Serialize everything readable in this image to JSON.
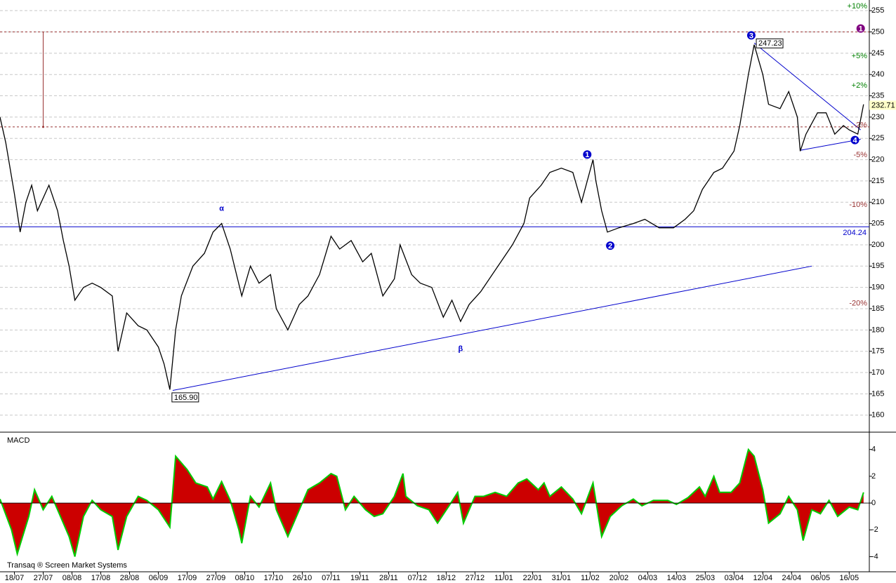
{
  "chart_data": [
    {
      "type": "line",
      "color": "#000000",
      "x": [
        0,
        2,
        5,
        7,
        9,
        11,
        13,
        17,
        20,
        22,
        24,
        26,
        29,
        32,
        35,
        39,
        41,
        44,
        48,
        51,
        55,
        57,
        59,
        61,
        63,
        67,
        71,
        74,
        77,
        80,
        84,
        87,
        90,
        94,
        96,
        100,
        104,
        107,
        111,
        115,
        118,
        122,
        126,
        129,
        133,
        137,
        139,
        143,
        146,
        150,
        154,
        157,
        160,
        163,
        167,
        171,
        174,
        178,
        182,
        184,
        188,
        191,
        195,
        199,
        202,
        206,
        207,
        209,
        211,
        215,
        220,
        224,
        229,
        234,
        238,
        241,
        244,
        248,
        251,
        255,
        257,
        260,
        262,
        265,
        267,
        271,
        274,
        277,
        278,
        280,
        284,
        287,
        290,
        293,
        295,
        298,
        300
      ],
      "values": [
        230,
        224,
        212,
        203,
        210,
        214,
        208,
        214,
        208,
        201,
        195,
        187,
        190,
        191,
        190,
        188,
        175,
        184,
        181,
        180,
        176,
        172,
        166,
        180,
        188,
        195,
        198,
        203,
        205,
        199,
        188,
        195,
        191,
        193,
        185,
        180,
        186,
        188,
        193,
        202,
        199,
        201,
        196,
        198,
        188,
        192,
        200,
        193,
        191,
        190,
        183,
        187,
        182,
        186,
        189,
        193,
        196,
        200,
        205,
        211,
        214,
        217,
        218,
        217,
        210,
        220,
        215,
        208,
        203,
        204,
        205,
        206,
        204,
        204,
        206,
        208,
        213,
        217,
        218,
        222,
        228,
        240,
        247,
        240,
        233,
        232,
        236,
        230,
        222,
        226,
        231,
        231,
        226,
        228,
        227,
        226,
        233
      ],
      "xlim": [
        0,
        302
      ],
      "xticks": [
        {
          "value": 5,
          "label": "18/07"
        },
        {
          "value": 15,
          "label": "27/07"
        },
        {
          "value": 25,
          "label": "08/08"
        },
        {
          "value": 35,
          "label": "17/08"
        },
        {
          "value": 45,
          "label": "28/08"
        },
        {
          "value": 55,
          "label": "06/09"
        },
        {
          "value": 65,
          "label": "17/09"
        },
        {
          "value": 75,
          "label": "27/09"
        },
        {
          "value": 85,
          "label": "08/10"
        },
        {
          "value": 95,
          "label": "17/10"
        },
        {
          "value": 105,
          "label": "26/10"
        },
        {
          "value": 115,
          "label": "07/11"
        },
        {
          "value": 125,
          "label": "19/11"
        },
        {
          "value": 135,
          "label": "28/11"
        },
        {
          "value": 145,
          "label": "07/12"
        },
        {
          "value": 155,
          "label": "18/12"
        },
        {
          "value": 165,
          "label": "27/12"
        },
        {
          "value": 175,
          "label": "11/01"
        },
        {
          "value": 185,
          "label": "22/01"
        },
        {
          "value": 195,
          "label": "31/01"
        },
        {
          "value": 205,
          "label": "11/02"
        },
        {
          "value": 215,
          "label": "20/02"
        },
        {
          "value": 225,
          "label": "04/03"
        },
        {
          "value": 235,
          "label": "14/03"
        },
        {
          "value": 245,
          "label": "25/03"
        },
        {
          "value": 255,
          "label": "03/04"
        },
        {
          "value": 265,
          "label": "12/04"
        },
        {
          "value": 275,
          "label": "24/04"
        },
        {
          "value": 285,
          "label": "06/05"
        },
        {
          "value": 295,
          "label": "16/05"
        }
      ],
      "ylim": [
        156,
        257.5
      ],
      "yticks": [
        160,
        165,
        170,
        175,
        180,
        185,
        190,
        195,
        200,
        205,
        210,
        215,
        220,
        225,
        230,
        235,
        240,
        245,
        250,
        255
      ],
      "grid": true,
      "hlines": [
        {
          "value": 204.24,
          "label": "204.24",
          "color": "#0000cc"
        }
      ],
      "dashed_levels": [
        250,
        227.7
      ],
      "dashed_color": "#993333",
      "vline": {
        "x": 15,
        "values": [
          250,
          227.7
        ]
      },
      "trendlines": [
        {
          "x": [
            60,
            282
          ],
          "values": [
            165.8,
            195
          ]
        },
        {
          "x": [
            262,
            299
          ],
          "values": [
            247.4,
            227
          ]
        },
        {
          "x": [
            278,
            299
          ],
          "values": [
            222.2,
            224.8
          ]
        }
      ],
      "trend_color": "#0000cc",
      "price_labels": [
        {
          "x": 59,
          "value": 165.9,
          "label": "165.90"
        },
        {
          "x": 262,
          "value": 247.23,
          "label": "247.23"
        },
        {
          "x": 301,
          "value": 232.71,
          "label": "232.71"
        }
      ],
      "wave_labels": [
        {
          "x": 77,
          "value": 208.5,
          "label": "α",
          "color": "#0000cc"
        },
        {
          "x": 160,
          "value": 175.5,
          "label": "β",
          "color": "#0000cc"
        },
        {
          "x": 204,
          "value": 221.2,
          "label": "1",
          "color": "#0000cc"
        },
        {
          "x": 212,
          "value": 199.8,
          "label": "2",
          "color": "#0000cc"
        },
        {
          "x": 261,
          "value": 249.2,
          "label": "3",
          "color": "#0000cc"
        },
        {
          "x": 297,
          "value": 224.6,
          "label": "4",
          "color": "#0000cc"
        },
        {
          "x": 299,
          "value": 250.8,
          "label": "1",
          "color": "#800080"
        }
      ],
      "percent_levels": [
        {
          "value": 256,
          "label": "+10%",
          "color": "#008000"
        },
        {
          "value": 244.3,
          "label": "+5%",
          "color": "#008000"
        },
        {
          "value": 237.4,
          "label": "+2%",
          "color": "#008000"
        },
        {
          "value": 228.1,
          "label": "-2%",
          "color": "#993333"
        },
        {
          "value": 221.1,
          "label": "-5%",
          "color": "#993333"
        },
        {
          "value": 209.4,
          "label": "-10%",
          "color": "#993333"
        },
        {
          "value": 186.2,
          "label": "-20%",
          "color": "#993333"
        }
      ]
    },
    {
      "type": "area",
      "title": "MACD",
      "color": "#cc0000",
      "edge_color": "#00cc00",
      "x": [
        0,
        4,
        6,
        10,
        12,
        15,
        18,
        22,
        24,
        26,
        29,
        32,
        35,
        39,
        41,
        44,
        48,
        51,
        55,
        59,
        61,
        65,
        68,
        72,
        74,
        77,
        80,
        83,
        84,
        87,
        90,
        94,
        96,
        100,
        104,
        107,
        111,
        115,
        117,
        120,
        123,
        127,
        130,
        133,
        137,
        140,
        141,
        145,
        149,
        152,
        156,
        159,
        161,
        165,
        168,
        172,
        176,
        180,
        183,
        187,
        189,
        191,
        195,
        199,
        202,
        206,
        209,
        212,
        216,
        220,
        223,
        227,
        232,
        235,
        239,
        243,
        245,
        248,
        250,
        254,
        257,
        260,
        262,
        265,
        267,
        271,
        274,
        277,
        279,
        282,
        285,
        288,
        291,
        295,
        298,
        300
      ],
      "values": [
        0.3,
        -2,
        -3.8,
        -1,
        1,
        -0.5,
        0.5,
        -1.5,
        -2.5,
        -4,
        -1,
        0.2,
        -0.5,
        -1,
        -3.5,
        -1,
        0.5,
        0.2,
        -0.5,
        -1.8,
        3.5,
        2.5,
        1.5,
        1.2,
        0.3,
        1.6,
        0.2,
        -2,
        -3,
        0.5,
        -0.3,
        1.5,
        -0.5,
        -2.5,
        -0.5,
        1,
        1.5,
        2.2,
        2,
        -0.5,
        0.5,
        -0.5,
        -1,
        -0.8,
        0.5,
        2.2,
        0.5,
        -0.2,
        -0.5,
        -1.5,
        -0.2,
        0.8,
        -1.5,
        0.5,
        0.5,
        0.8,
        0.5,
        1.5,
        1.8,
        1,
        1.5,
        0.5,
        1.2,
        0.3,
        -0.8,
        1.5,
        -2.5,
        -1,
        -0.2,
        0.3,
        -0.2,
        0.2,
        0.2,
        -0.1,
        0.4,
        1.2,
        0.5,
        2,
        0.8,
        0.8,
        1.5,
        4,
        3.5,
        1,
        -1.5,
        -0.8,
        0.5,
        -0.5,
        -2.8,
        -0.5,
        -0.8,
        0.2,
        -1,
        -0.3,
        -0.5,
        0.8
      ],
      "xlim": [
        0,
        302
      ],
      "ylim": [
        -5.13,
        5.24
      ],
      "yticks": [
        -4,
        -2,
        0,
        2,
        4
      ]
    }
  ],
  "footer": "Transaq ® Screen Market Systems"
}
